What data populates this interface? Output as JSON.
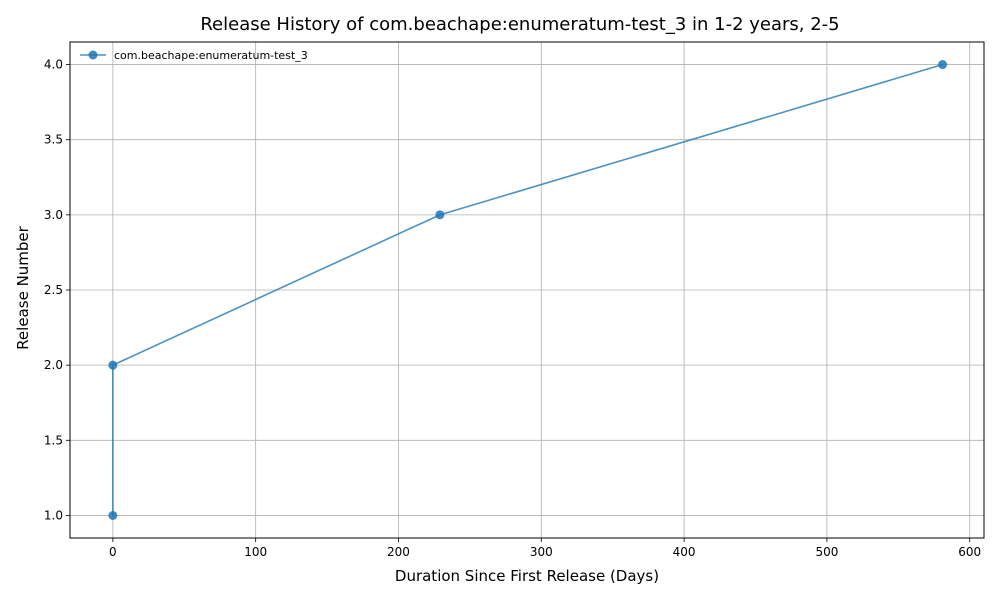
{
  "chart_data": {
    "type": "line",
    "title": "Release History of com.beachape:enumeratum-test_3 in 1-2 years, 2-5",
    "xlabel": "Duration Since First Release (Days)",
    "ylabel": "Release Number",
    "xlim": [
      -30,
      610
    ],
    "ylim": [
      0.85,
      4.15
    ],
    "xticks": [
      0,
      100,
      200,
      300,
      400,
      500,
      600
    ],
    "yticks": [
      1.0,
      1.5,
      2.0,
      2.5,
      3.0,
      3.5,
      4.0
    ],
    "xtick_labels": [
      "0",
      "100",
      "200",
      "300",
      "400",
      "500",
      "600"
    ],
    "ytick_labels": [
      "1.0",
      "1.5",
      "2.0",
      "2.5",
      "3.0",
      "3.5",
      "4.0"
    ],
    "grid": true,
    "legend_position": "top-left",
    "series": [
      {
        "name": "com.beachape:enumeratum-test_3",
        "color": "#1f77b4",
        "x": [
          0,
          0,
          229,
          581
        ],
        "y": [
          1,
          2,
          3,
          4
        ]
      }
    ]
  }
}
